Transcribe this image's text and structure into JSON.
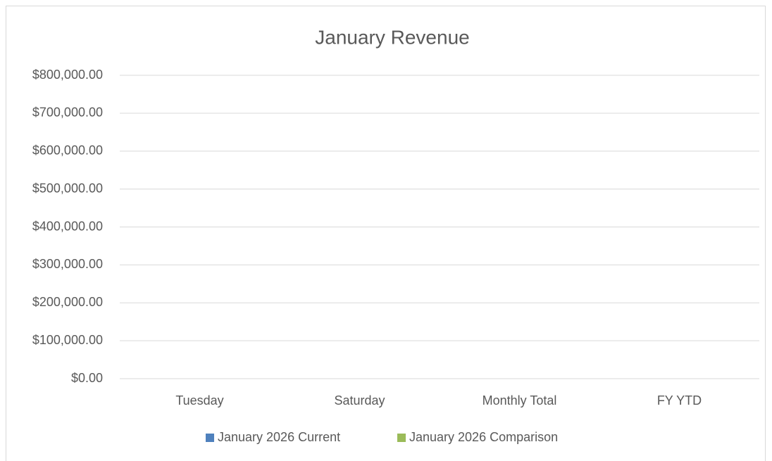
{
  "chart_data": {
    "type": "bar",
    "title": "January Revenue",
    "categories": [
      "Tuesday",
      "Saturday",
      "Monthly Total",
      "FY YTD"
    ],
    "series": [
      {
        "name": "January 2026 Current",
        "color": "#4f81bd",
        "values": [
          0,
          0,
          0,
          0
        ]
      },
      {
        "name": "January 2026 Comparison",
        "color": "#9bbb59",
        "values": [
          0,
          0,
          0,
          0
        ]
      }
    ],
    "ylim": [
      0,
      800000
    ],
    "yticks": [
      {
        "value": 0,
        "label": "$0.00"
      },
      {
        "value": 100000,
        "label": "$100,000.00"
      },
      {
        "value": 200000,
        "label": "$200,000.00"
      },
      {
        "value": 300000,
        "label": "$300,000.00"
      },
      {
        "value": 400000,
        "label": "$400,000.00"
      },
      {
        "value": 500000,
        "label": "$500,000.00"
      },
      {
        "value": 600000,
        "label": "$600,000.00"
      },
      {
        "value": 700000,
        "label": "$700,000.00"
      },
      {
        "value": 800000,
        "label": "$800,000.00"
      }
    ],
    "grid": true,
    "legend": "bottom"
  }
}
